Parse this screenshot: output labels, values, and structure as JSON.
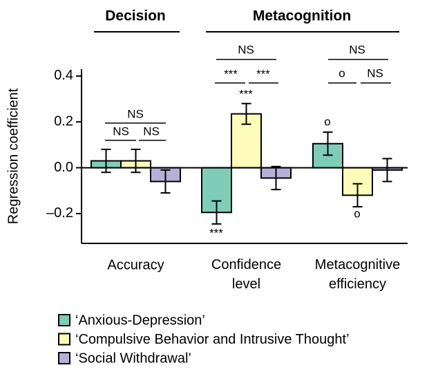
{
  "chart_data": {
    "type": "bar",
    "y_label": "Regression coefficient",
    "categories": [
      "Accuracy",
      "Confidence level",
      "Metacognitive efficiency"
    ],
    "group_labels": [
      "Decision",
      "Metacognition"
    ],
    "series": [
      {
        "name": "‘Anxious-Depression’",
        "color": "#7fcdb9",
        "values": [
          0.03,
          -0.195,
          0.105
        ],
        "errors": [
          0.05,
          0.05,
          0.05
        ]
      },
      {
        "name": "‘Compulsive Behavior and Intrusive Thought’",
        "color": "#fdfcb8",
        "values": [
          0.03,
          0.235,
          -0.12
        ],
        "errors": [
          0.05,
          0.045,
          0.05
        ]
      },
      {
        "name": "‘Social Withdrawal’",
        "color": "#b5b0d7",
        "values": [
          -0.06,
          -0.045,
          -0.01
        ],
        "errors": [
          0.05,
          0.05,
          0.05
        ]
      }
    ],
    "annotations": [
      "NS",
      "NS",
      "NS",
      "NS",
      "***",
      "***",
      "***",
      "***",
      "NS",
      "o",
      "NS",
      "o",
      "o"
    ],
    "ylim": [
      -0.33,
      0.43
    ],
    "yticks": [
      {
        "value": -0.2,
        "label": "–0.2"
      },
      {
        "value": 0,
        "label": "0.0"
      },
      0.2,
      0.4
    ],
    "legend": "bottom-left"
  }
}
